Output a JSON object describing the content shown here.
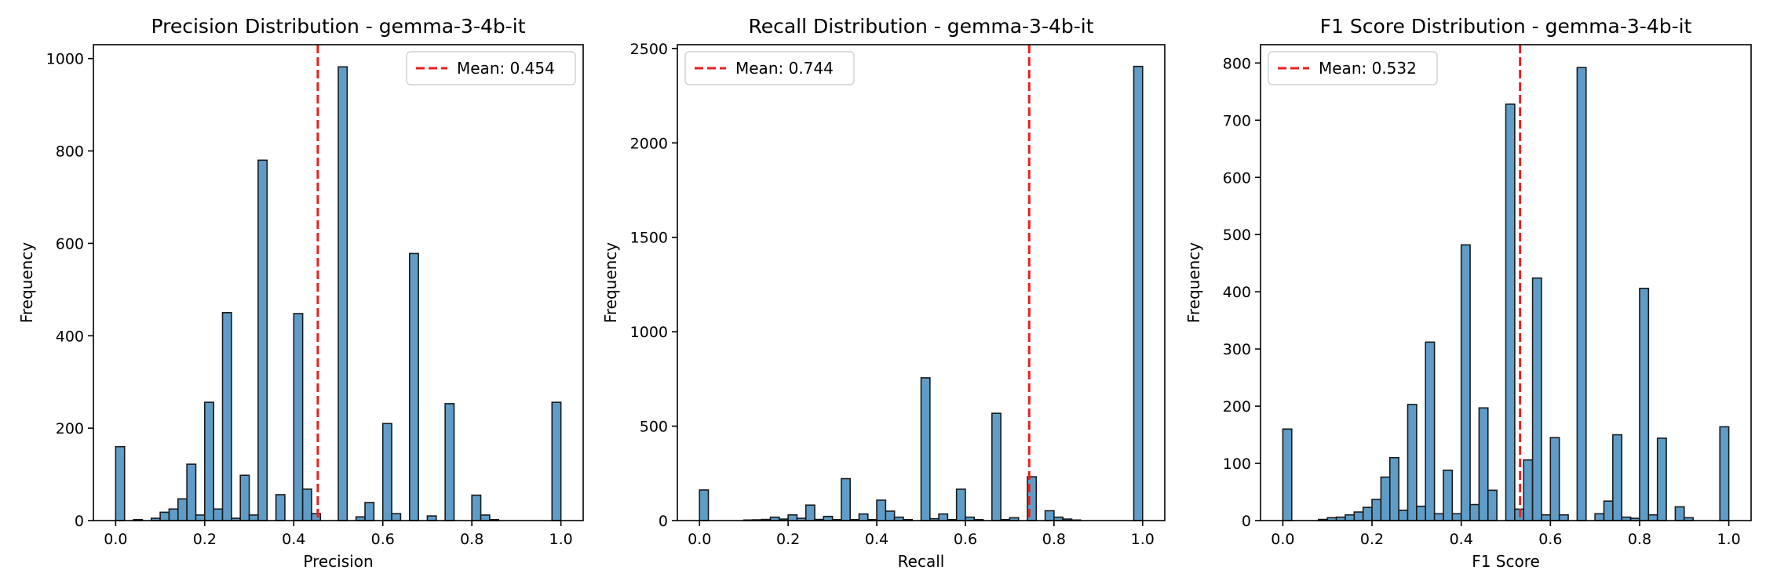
{
  "chart_data": [
    {
      "type": "bar",
      "title": "Precision Distribution - gemma-3-4b-it",
      "xlabel": "Precision",
      "ylabel": "Frequency",
      "xlim": [
        -0.05,
        1.05
      ],
      "ylim": [
        0,
        1030
      ],
      "xticks": [
        0.0,
        0.2,
        0.4,
        0.6,
        0.8,
        1.0
      ],
      "xtick_labels": [
        "0.0",
        "0.2",
        "0.4",
        "0.6",
        "0.8",
        "1.0"
      ],
      "yticks": [
        0,
        200,
        400,
        600,
        800,
        1000
      ],
      "ytick_labels": [
        "0",
        "200",
        "400",
        "600",
        "800",
        "1000"
      ],
      "mean_value": 0.454,
      "legend_label": "Mean: 0.454",
      "legend_position": "upper right",
      "bin_width": 0.02,
      "bins": [
        {
          "x": 0.0,
          "y": 160
        },
        {
          "x": 0.04,
          "y": 2
        },
        {
          "x": 0.08,
          "y": 5
        },
        {
          "x": 0.1,
          "y": 18
        },
        {
          "x": 0.12,
          "y": 25
        },
        {
          "x": 0.14,
          "y": 47
        },
        {
          "x": 0.16,
          "y": 122
        },
        {
          "x": 0.18,
          "y": 12
        },
        {
          "x": 0.2,
          "y": 256
        },
        {
          "x": 0.22,
          "y": 25
        },
        {
          "x": 0.24,
          "y": 450
        },
        {
          "x": 0.26,
          "y": 5
        },
        {
          "x": 0.28,
          "y": 98
        },
        {
          "x": 0.3,
          "y": 12
        },
        {
          "x": 0.32,
          "y": 780
        },
        {
          "x": 0.36,
          "y": 56
        },
        {
          "x": 0.4,
          "y": 448
        },
        {
          "x": 0.42,
          "y": 68
        },
        {
          "x": 0.44,
          "y": 15
        },
        {
          "x": 0.5,
          "y": 982
        },
        {
          "x": 0.54,
          "y": 8
        },
        {
          "x": 0.56,
          "y": 39
        },
        {
          "x": 0.6,
          "y": 210
        },
        {
          "x": 0.62,
          "y": 15
        },
        {
          "x": 0.66,
          "y": 578
        },
        {
          "x": 0.7,
          "y": 10
        },
        {
          "x": 0.74,
          "y": 253
        },
        {
          "x": 0.8,
          "y": 55
        },
        {
          "x": 0.82,
          "y": 12
        },
        {
          "x": 0.84,
          "y": 2
        },
        {
          "x": 0.98,
          "y": 256
        }
      ]
    },
    {
      "type": "bar",
      "title": "Recall Distribution - gemma-3-4b-it",
      "xlabel": "Recall",
      "ylabel": "Frequency",
      "xlim": [
        -0.05,
        1.05
      ],
      "ylim": [
        0,
        2520
      ],
      "xticks": [
        0.0,
        0.2,
        0.4,
        0.6,
        0.8,
        1.0
      ],
      "xtick_labels": [
        "0.0",
        "0.2",
        "0.4",
        "0.6",
        "0.8",
        "1.0"
      ],
      "yticks": [
        0,
        500,
        1000,
        1500,
        2000,
        2500
      ],
      "ytick_labels": [
        "0",
        "500",
        "1000",
        "1500",
        "2000",
        "2500"
      ],
      "mean_value": 0.744,
      "legend_label": "Mean: 0.744",
      "legend_position": "upper left",
      "bin_width": 0.02,
      "bins": [
        {
          "x": 0.0,
          "y": 162
        },
        {
          "x": 0.1,
          "y": 3
        },
        {
          "x": 0.12,
          "y": 4
        },
        {
          "x": 0.14,
          "y": 6
        },
        {
          "x": 0.16,
          "y": 18
        },
        {
          "x": 0.18,
          "y": 8
        },
        {
          "x": 0.2,
          "y": 30
        },
        {
          "x": 0.22,
          "y": 12
        },
        {
          "x": 0.24,
          "y": 82
        },
        {
          "x": 0.26,
          "y": 6
        },
        {
          "x": 0.28,
          "y": 22
        },
        {
          "x": 0.3,
          "y": 5
        },
        {
          "x": 0.32,
          "y": 222
        },
        {
          "x": 0.34,
          "y": 5
        },
        {
          "x": 0.36,
          "y": 35
        },
        {
          "x": 0.38,
          "y": 5
        },
        {
          "x": 0.4,
          "y": 108
        },
        {
          "x": 0.42,
          "y": 50
        },
        {
          "x": 0.44,
          "y": 18
        },
        {
          "x": 0.46,
          "y": 5
        },
        {
          "x": 0.5,
          "y": 756
        },
        {
          "x": 0.52,
          "y": 10
        },
        {
          "x": 0.54,
          "y": 35
        },
        {
          "x": 0.56,
          "y": 5
        },
        {
          "x": 0.58,
          "y": 166
        },
        {
          "x": 0.6,
          "y": 18
        },
        {
          "x": 0.62,
          "y": 5
        },
        {
          "x": 0.66,
          "y": 568
        },
        {
          "x": 0.68,
          "y": 5
        },
        {
          "x": 0.7,
          "y": 15
        },
        {
          "x": 0.74,
          "y": 232
        },
        {
          "x": 0.78,
          "y": 52
        },
        {
          "x": 0.8,
          "y": 18
        },
        {
          "x": 0.82,
          "y": 8
        },
        {
          "x": 0.84,
          "y": 3
        },
        {
          "x": 0.98,
          "y": 2405
        }
      ]
    },
    {
      "type": "bar",
      "title": "F1 Score Distribution - gemma-3-4b-it",
      "xlabel": "F1 Score",
      "ylabel": "Frequency",
      "xlim": [
        -0.05,
        1.05
      ],
      "ylim": [
        0,
        832
      ],
      "xticks": [
        0.0,
        0.2,
        0.4,
        0.6,
        0.8,
        1.0
      ],
      "xtick_labels": [
        "0.0",
        "0.2",
        "0.4",
        "0.6",
        "0.8",
        "1.0"
      ],
      "yticks": [
        0,
        100,
        200,
        300,
        400,
        500,
        600,
        700,
        800
      ],
      "ytick_labels": [
        "0",
        "100",
        "200",
        "300",
        "400",
        "500",
        "600",
        "700",
        "800"
      ],
      "mean_value": 0.532,
      "legend_label": "Mean: 0.532",
      "legend_position": "upper left",
      "bin_width": 0.02,
      "bins": [
        {
          "x": 0.0,
          "y": 160
        },
        {
          "x": 0.08,
          "y": 2
        },
        {
          "x": 0.1,
          "y": 5
        },
        {
          "x": 0.12,
          "y": 6
        },
        {
          "x": 0.14,
          "y": 10
        },
        {
          "x": 0.16,
          "y": 15
        },
        {
          "x": 0.18,
          "y": 23
        },
        {
          "x": 0.2,
          "y": 37
        },
        {
          "x": 0.22,
          "y": 76
        },
        {
          "x": 0.24,
          "y": 110
        },
        {
          "x": 0.26,
          "y": 18
        },
        {
          "x": 0.28,
          "y": 203
        },
        {
          "x": 0.3,
          "y": 25
        },
        {
          "x": 0.32,
          "y": 312
        },
        {
          "x": 0.34,
          "y": 12
        },
        {
          "x": 0.36,
          "y": 88
        },
        {
          "x": 0.38,
          "y": 12
        },
        {
          "x": 0.4,
          "y": 482
        },
        {
          "x": 0.42,
          "y": 28
        },
        {
          "x": 0.44,
          "y": 197
        },
        {
          "x": 0.46,
          "y": 53
        },
        {
          "x": 0.5,
          "y": 728
        },
        {
          "x": 0.52,
          "y": 20
        },
        {
          "x": 0.54,
          "y": 106
        },
        {
          "x": 0.56,
          "y": 424
        },
        {
          "x": 0.58,
          "y": 10
        },
        {
          "x": 0.6,
          "y": 145
        },
        {
          "x": 0.62,
          "y": 10
        },
        {
          "x": 0.66,
          "y": 792
        },
        {
          "x": 0.7,
          "y": 12
        },
        {
          "x": 0.72,
          "y": 34
        },
        {
          "x": 0.74,
          "y": 150
        },
        {
          "x": 0.76,
          "y": 6
        },
        {
          "x": 0.78,
          "y": 4
        },
        {
          "x": 0.8,
          "y": 406
        },
        {
          "x": 0.82,
          "y": 10
        },
        {
          "x": 0.84,
          "y": 144
        },
        {
          "x": 0.88,
          "y": 24
        },
        {
          "x": 0.9,
          "y": 5
        },
        {
          "x": 0.98,
          "y": 164
        }
      ]
    }
  ],
  "style": {
    "bar_fill": "#5f9dc8",
    "bar_edge": "#1a1a1a",
    "mean_line": "#e8201f",
    "axis_color": "#000000"
  }
}
